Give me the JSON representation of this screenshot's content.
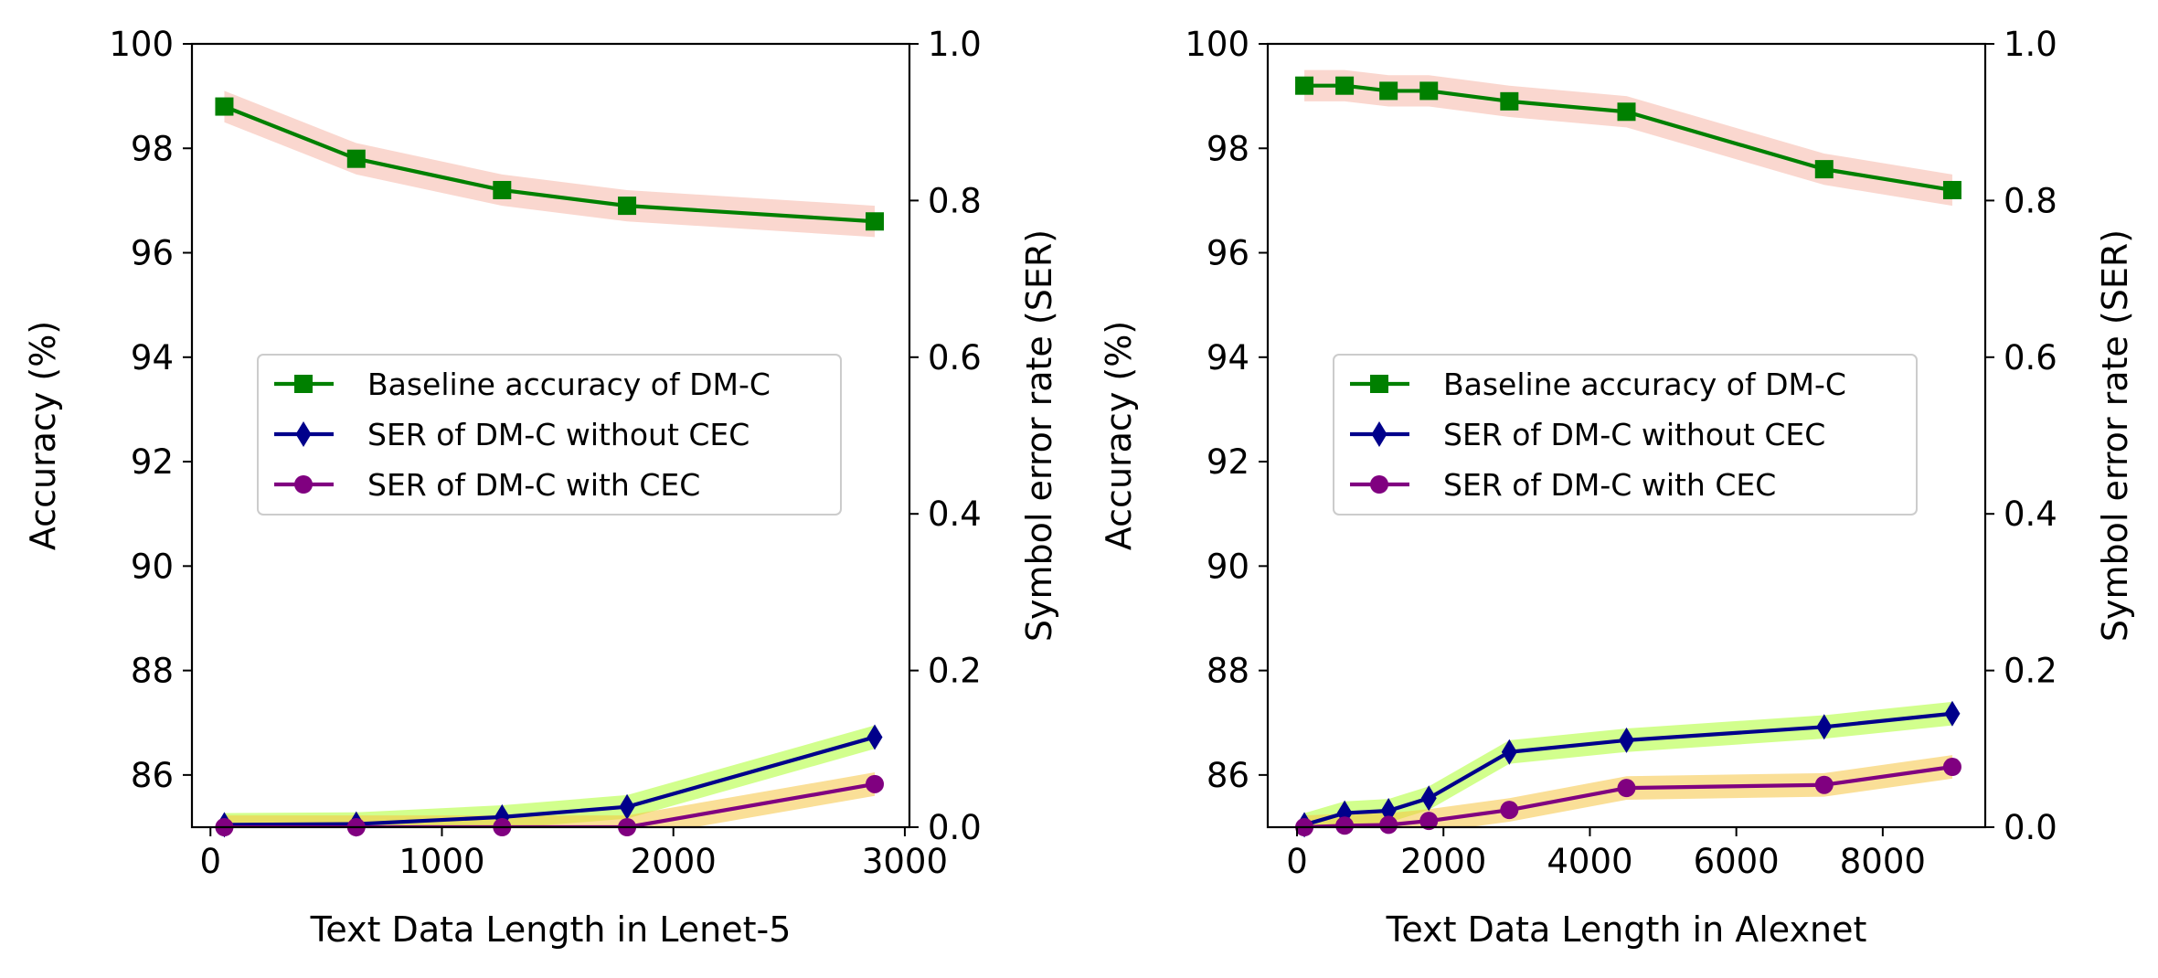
{
  "colors": {
    "baseline": "#008000",
    "ser_without": "#00008b",
    "ser_with": "#800080",
    "band_baseline": "#f5b6a8",
    "band_without": "#adff2f",
    "band_with": "#f5c542",
    "axis": "#000000"
  },
  "chart_data": [
    {
      "type": "line",
      "xlabel": "Text Data Length in Lenet-5",
      "ylabel": "Accuracy (%)",
      "y2label": "Symbol error rate (SER)",
      "xlim": [
        -80,
        3020
      ],
      "ylim": [
        85,
        100
      ],
      "y2lim": [
        0,
        1
      ],
      "xticks": [
        0,
        1000,
        2000,
        3000
      ],
      "xtick_labels": [
        "0",
        "1000",
        "2000",
        "3000"
      ],
      "yticks": [
        86,
        88,
        90,
        92,
        94,
        96,
        98,
        100
      ],
      "ytick_labels": [
        "86",
        "88",
        "90",
        "92",
        "94",
        "96",
        "98",
        "100"
      ],
      "y2ticks": [
        0,
        0.2,
        0.4,
        0.6,
        0.8,
        1.0
      ],
      "y2tick_labels": [
        "0.0",
        "0.2",
        "0.4",
        "0.6",
        "0.8",
        "1.0"
      ],
      "legend_position": "center-left",
      "series": [
        {
          "name": "Baseline accuracy of DM-C",
          "axis": "left",
          "marker": "square",
          "color_key": "baseline",
          "band_key": "band_baseline",
          "x": [
            60,
            630,
            1260,
            1800,
            2870
          ],
          "values": [
            98.8,
            97.8,
            97.2,
            96.9,
            96.6
          ],
          "band": 0.3
        },
        {
          "name": "SER of DM-C without CEC",
          "axis": "right",
          "marker": "diamond",
          "color_key": "ser_without",
          "band_key": "band_without",
          "x": [
            60,
            630,
            1260,
            1800,
            2870
          ],
          "values": [
            0.003,
            0.004,
            0.013,
            0.026,
            0.115
          ],
          "band": 0.015
        },
        {
          "name": "SER of DM-C with CEC",
          "axis": "right",
          "marker": "circle",
          "color_key": "ser_with",
          "band_key": "band_with",
          "x": [
            60,
            630,
            1260,
            1800,
            2870
          ],
          "values": [
            0.0,
            0.0,
            0.0,
            0.0,
            0.055
          ],
          "band": 0.015
        }
      ]
    },
    {
      "type": "line",
      "xlabel": "Text Data Length in Alexnet",
      "ylabel": "Accuracy (%)",
      "y2label": "Symbol error rate (SER)",
      "xlim": [
        -400,
        9400
      ],
      "ylim": [
        85,
        100
      ],
      "y2lim": [
        0,
        1
      ],
      "xticks": [
        0,
        2000,
        4000,
        6000,
        8000
      ],
      "xtick_labels": [
        "0",
        "2000",
        "4000",
        "6000",
        "8000"
      ],
      "yticks": [
        86,
        88,
        90,
        92,
        94,
        96,
        98,
        100
      ],
      "ytick_labels": [
        "86",
        "88",
        "90",
        "92",
        "94",
        "96",
        "98",
        "100"
      ],
      "y2ticks": [
        0,
        0.2,
        0.4,
        0.6,
        0.8,
        1.0
      ],
      "y2tick_labels": [
        "0.0",
        "0.2",
        "0.4",
        "0.6",
        "0.8",
        "1.0"
      ],
      "legend_position": "center-left",
      "series": [
        {
          "name": "Baseline accuracy of DM-C",
          "axis": "left",
          "marker": "square",
          "color_key": "baseline",
          "band_key": "band_baseline",
          "x": [
            100,
            650,
            1250,
            1800,
            2900,
            4500,
            7200,
            8950
          ],
          "values": [
            99.2,
            99.2,
            99.1,
            99.1,
            98.9,
            98.7,
            97.6,
            97.2
          ],
          "band": 0.3
        },
        {
          "name": "SER of DM-C without CEC",
          "axis": "right",
          "marker": "diamond",
          "color_key": "ser_without",
          "band_key": "band_without",
          "x": [
            100,
            650,
            1250,
            1800,
            2900,
            4500,
            7200,
            8950
          ],
          "values": [
            0.003,
            0.018,
            0.021,
            0.037,
            0.096,
            0.111,
            0.128,
            0.145
          ],
          "band": 0.015
        },
        {
          "name": "SER of DM-C with CEC",
          "axis": "right",
          "marker": "circle",
          "color_key": "ser_with",
          "band_key": "band_with",
          "x": [
            100,
            650,
            1250,
            1800,
            2900,
            4500,
            7200,
            8950
          ],
          "values": [
            0.0,
            0.002,
            0.003,
            0.008,
            0.022,
            0.05,
            0.054,
            0.077
          ],
          "band": 0.015
        }
      ]
    }
  ]
}
